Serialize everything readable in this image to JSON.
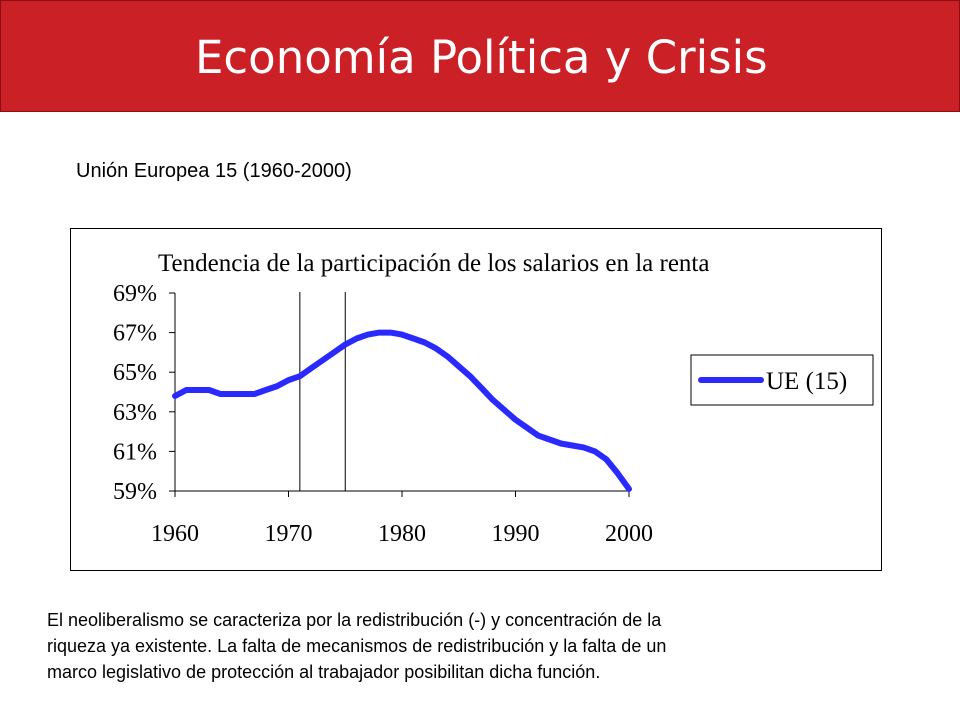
{
  "header": {
    "title": "Economía Política y Crisis"
  },
  "subtitle": "Unión Europea 15 (1960-2000)",
  "chart_data": {
    "type": "line",
    "title": "Tendencia de la participación de los salarios en la renta",
    "x_tick_labels": [
      "1960",
      "1970",
      "1980",
      "1990",
      "2000"
    ],
    "y_tick_labels": [
      "59%",
      "61%",
      "63%",
      "65%",
      "67%",
      "69%"
    ],
    "xlim": [
      1960,
      2000
    ],
    "ylim": [
      59,
      69
    ],
    "legend_position": "right",
    "vertical_markers": [
      1971,
      1975
    ],
    "series": [
      {
        "name": "UE (15)",
        "color": "#2a2aff",
        "x": [
          1960,
          1961,
          1962,
          1963,
          1964,
          1965,
          1966,
          1967,
          1968,
          1969,
          1970,
          1971,
          1972,
          1973,
          1974,
          1975,
          1976,
          1977,
          1978,
          1979,
          1980,
          1981,
          1982,
          1983,
          1984,
          1985,
          1986,
          1987,
          1988,
          1989,
          1990,
          1991,
          1992,
          1993,
          1994,
          1995,
          1996,
          1997,
          1998,
          1999,
          2000
        ],
        "y": [
          63.8,
          64.1,
          64.1,
          64.1,
          63.9,
          63.9,
          63.9,
          63.9,
          64.1,
          64.3,
          64.6,
          64.8,
          65.2,
          65.6,
          66.0,
          66.4,
          66.7,
          66.9,
          67.0,
          67.0,
          66.9,
          66.7,
          66.5,
          66.2,
          65.8,
          65.3,
          64.8,
          64.2,
          63.6,
          63.1,
          62.6,
          62.2,
          61.8,
          61.6,
          61.4,
          61.3,
          61.2,
          61.0,
          60.6,
          59.9,
          59.1
        ]
      }
    ]
  },
  "body_text": [
    "El neoliberalismo se caracteriza por la redistribución (-) y concentración de la",
    "riqueza ya existente. La falta de mecanismos de redistribución y la falta de un",
    "marco legislativo de protección al trabajador posibilitan dicha función."
  ]
}
